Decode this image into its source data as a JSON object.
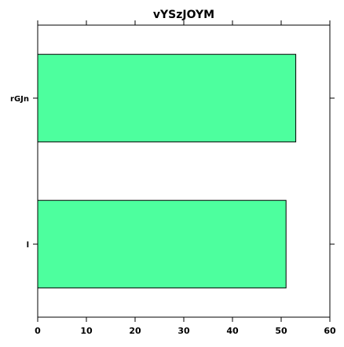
{
  "chart_data": {
    "type": "bar",
    "orientation": "horizontal",
    "title": "vYSzJOYM",
    "xlabel": "",
    "ylabel": "",
    "categories": [
      "rGJn",
      "l"
    ],
    "values": [
      53,
      51
    ],
    "xlim": [
      0,
      60
    ],
    "xticks": [
      0,
      10,
      20,
      30,
      40,
      50,
      60
    ],
    "grid": false,
    "legend": "none",
    "colors": {
      "bar_fill": "#4dff9e",
      "bar_stroke": "#000000",
      "axis": "#000000",
      "background": "#ffffff"
    }
  }
}
